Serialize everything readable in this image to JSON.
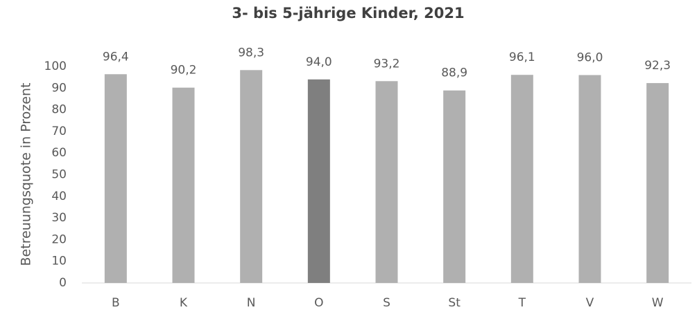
{
  "chart_data": {
    "type": "bar",
    "title": "3- bis 5-jährige Kinder, 2021",
    "y_label": "Betreuungsquote in Prozent",
    "categories": [
      "B",
      "K",
      "N",
      "O",
      "S",
      "St",
      "T",
      "V",
      "W"
    ],
    "values": [
      96.4,
      90.2,
      98.3,
      94.0,
      93.2,
      88.9,
      96.1,
      96.0,
      92.3
    ],
    "value_labels": [
      "96,4",
      "90,2",
      "98,3",
      "94,0",
      "93,2",
      "88,9",
      "96,1",
      "96,0",
      "92,3"
    ],
    "colors": [
      "#b0b0b0",
      "#b0b0b0",
      "#b0b0b0",
      "#7f7f7f",
      "#b0b0b0",
      "#b0b0b0",
      "#b0b0b0",
      "#b0b0b0",
      "#b0b0b0"
    ],
    "ylim": [
      0,
      100
    ],
    "yticks": [
      0,
      10,
      20,
      30,
      40,
      50,
      60,
      70,
      80,
      90,
      100
    ],
    "grid": false
  }
}
